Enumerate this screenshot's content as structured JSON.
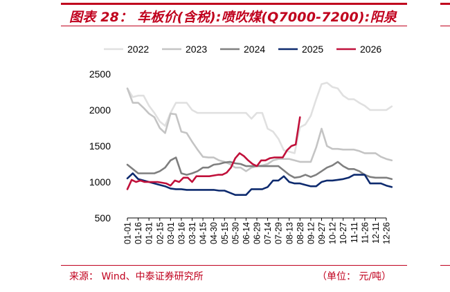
{
  "header": {
    "title": "图表 28：  车板价(含税):喷吹煤(Q7000-7200):阳泉"
  },
  "footer": {
    "source": "来源：    Wind、中泰证券研究所",
    "unit": "（单位：  元/吨）"
  },
  "colors": {
    "accent": "#c0001d"
  },
  "chart_data": {
    "type": "line",
    "title": "",
    "xlabel": "",
    "ylabel": "",
    "ylim": [
      500,
      2500
    ],
    "yticks": [
      500,
      1000,
      1500,
      2000,
      2500
    ],
    "grid": false,
    "legend_position": "top",
    "categories": [
      "01-01",
      "01-16",
      "01-31",
      "02-15",
      "03-01",
      "03-16",
      "03-31",
      "04-15",
      "04-30",
      "05-15",
      "05-30",
      "06-14",
      "06-29",
      "07-14",
      "07-29",
      "08-13",
      "08-28",
      "09-12",
      "09-27",
      "10-12",
      "10-27",
      "11-11",
      "11-26",
      "12-11",
      "12-26"
    ],
    "series": [
      {
        "name": "2022",
        "color": "#e0e0e0",
        "x": [
          0,
          0.5,
          1,
          1.5,
          2,
          2.5,
          3,
          3.5,
          4,
          4.5,
          5,
          5.5,
          6,
          6.5,
          7,
          7.5,
          8,
          8.5,
          9,
          9.5,
          10,
          10.5,
          11,
          11.5,
          12,
          12.5,
          13,
          13.5,
          14,
          14.5,
          15,
          15.5,
          16,
          16.5,
          17,
          17.5,
          18,
          18.5,
          19,
          19.5,
          20,
          20.5,
          21,
          21.5,
          22,
          22.5,
          23,
          23.5,
          24,
          24.5
        ],
        "values": [
          2300,
          2180,
          2200,
          2200,
          2060,
          1960,
          1840,
          1780,
          1960,
          2100,
          2100,
          2100,
          2000,
          1960,
          1960,
          1960,
          1960,
          1960,
          1960,
          1960,
          1960,
          1960,
          1960,
          1880,
          1960,
          1960,
          1740,
          1700,
          1600,
          1440,
          1420,
          1400,
          1760,
          1800,
          1920,
          2150,
          2360,
          2380,
          2320,
          2300,
          2200,
          2150,
          2150,
          2100,
          2060,
          2000,
          2000,
          2000,
          2000,
          2050
        ]
      },
      {
        "name": "2023",
        "color": "#c4c4c4",
        "x": [
          0,
          0.5,
          1,
          1.5,
          2,
          2.5,
          3,
          3.5,
          4,
          4.5,
          5,
          5.5,
          6,
          6.5,
          7,
          7.5,
          8,
          8.5,
          9,
          9.5,
          10,
          10.5,
          11,
          11.5,
          12,
          12.5,
          13,
          13.5,
          14,
          14.5,
          15,
          15.5,
          16,
          16.5,
          17,
          17.5,
          18,
          18.5,
          19,
          19.5,
          20,
          20.5,
          21,
          21.5,
          22,
          22.5,
          23,
          23.5,
          24,
          24.5
        ],
        "values": [
          2300,
          2100,
          2100,
          2030,
          1950,
          1900,
          1750,
          1680,
          1950,
          1940,
          1700,
          1680,
          1560,
          1450,
          1350,
          1340,
          1340,
          1300,
          1280,
          1250,
          1200,
          1200,
          1150,
          1200,
          1220,
          1230,
          1250,
          1300,
          1320,
          1320,
          1320,
          1300,
          1280,
          1280,
          1280,
          1480,
          1740,
          1500,
          1460,
          1460,
          1450,
          1450,
          1450,
          1430,
          1400,
          1400,
          1400,
          1350,
          1320,
          1300
        ]
      },
      {
        "name": "2024",
        "color": "#7f7f7f",
        "x": [
          0,
          0.5,
          1,
          1.5,
          2,
          2.5,
          3,
          3.5,
          4,
          4.5,
          5,
          5.5,
          6,
          6.5,
          7,
          7.5,
          8,
          8.5,
          9,
          9.5,
          10,
          10.5,
          11,
          11.5,
          12,
          12.5,
          13,
          13.5,
          14,
          14.5,
          15,
          15.5,
          16,
          16.5,
          17,
          17.5,
          18,
          18.5,
          19,
          19.5,
          20,
          20.5,
          21,
          21.5,
          22,
          22.5,
          23,
          23.5,
          24,
          24.5
        ],
        "values": [
          1240,
          1180,
          1120,
          1120,
          1120,
          1120,
          1150,
          1200,
          1300,
          1340,
          1120,
          1100,
          1120,
          1150,
          1200,
          1200,
          1240,
          1250,
          1270,
          1280,
          1260,
          1250,
          1220,
          1220,
          1220,
          1220,
          1220,
          1220,
          1220,
          1160,
          1100,
          1060,
          1070,
          1100,
          1070,
          1100,
          1150,
          1200,
          1230,
          1280,
          1220,
          1180,
          1180,
          1150,
          1100,
          1070,
          1060,
          1060,
          1060,
          1040
        ]
      },
      {
        "name": "2025",
        "color": "#0d2a6e",
        "x": [
          0,
          0.5,
          1,
          1.5,
          2,
          2.5,
          3,
          3.5,
          4,
          4.5,
          5,
          5.5,
          6,
          6.5,
          7,
          7.5,
          8,
          8.5,
          9,
          9.5,
          10,
          10.5,
          11,
          11.5,
          12,
          12.5,
          13,
          13.5,
          14,
          14.5,
          15,
          15.5,
          16,
          16.5,
          17,
          17.5,
          18,
          18.5,
          19,
          19.5,
          20,
          20.5,
          21,
          21.5,
          22,
          22.5,
          23,
          23.5,
          24,
          24.5
        ],
        "values": [
          1050,
          1120,
          1040,
          1020,
          1000,
          980,
          960,
          940,
          910,
          900,
          900,
          890,
          890,
          890,
          890,
          890,
          890,
          880,
          880,
          850,
          820,
          820,
          820,
          900,
          900,
          900,
          930,
          1020,
          1020,
          1080,
          1000,
          980,
          980,
          960,
          940,
          940,
          1000,
          1020,
          1020,
          1030,
          1040,
          1060,
          1100,
          1100,
          1100,
          980,
          980,
          980,
          950,
          930
        ]
      },
      {
        "name": "2026",
        "color": "#c0103a",
        "x": [
          0,
          0.4,
          0.8,
          1.2,
          1.6,
          2,
          2.4,
          2.8,
          3.2,
          3.6,
          4,
          4.4,
          4.8,
          5.2,
          5.6,
          6,
          6.4,
          6.8,
          7.2,
          7.6,
          8,
          8.4,
          8.8,
          9.2,
          9.6,
          10,
          10.4,
          10.8,
          11.2,
          11.6,
          12,
          12.4,
          12.8,
          13.2,
          13.6,
          14,
          14.4,
          14.8,
          15.2,
          15.6,
          16
        ],
        "values": [
          900,
          1030,
          1000,
          1020,
          1000,
          1000,
          1000,
          1000,
          990,
          980,
          950,
          1020,
          1000,
          1060,
          1060,
          1000,
          1080,
          1080,
          1080,
          1080,
          1090,
          1100,
          1100,
          1130,
          1200,
          1330,
          1400,
          1360,
          1300,
          1250,
          1220,
          1300,
          1300,
          1330,
          1340,
          1340,
          1340,
          1440,
          1500,
          1520,
          1900
        ]
      }
    ]
  }
}
